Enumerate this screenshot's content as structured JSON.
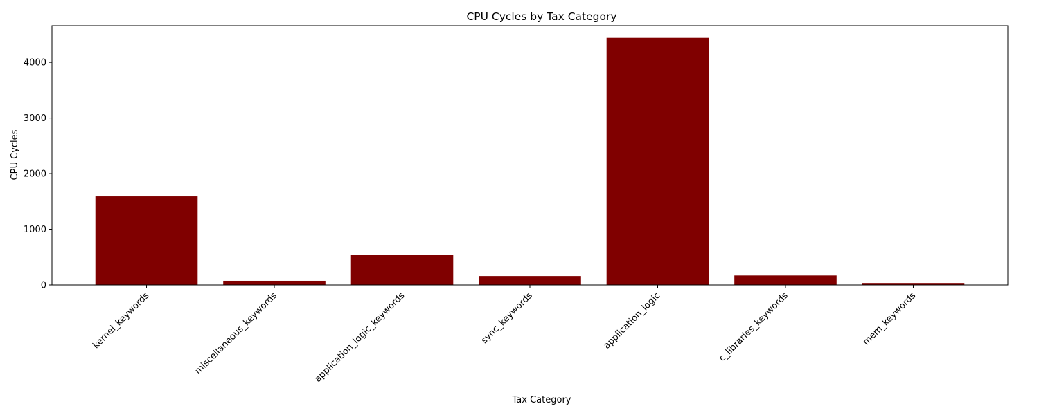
{
  "chart_data": {
    "type": "bar",
    "title": "CPU Cycles by Tax Category",
    "xlabel": "Tax Category",
    "ylabel": "CPU Cycles",
    "categories": [
      "kernel_keywords",
      "miscellaneous_keywords",
      "application_logic_keywords",
      "sync_keywords",
      "application_logic",
      "c_libraries_keywords",
      "mem_keywords"
    ],
    "values": [
      1590,
      75,
      545,
      160,
      4440,
      170,
      35
    ],
    "ylim": [
      0,
      4660
    ],
    "yticks": [
      0,
      1000,
      2000,
      3000,
      4000
    ],
    "bar_color": "#800000",
    "grid": false,
    "x_tick_rotation": 45
  }
}
